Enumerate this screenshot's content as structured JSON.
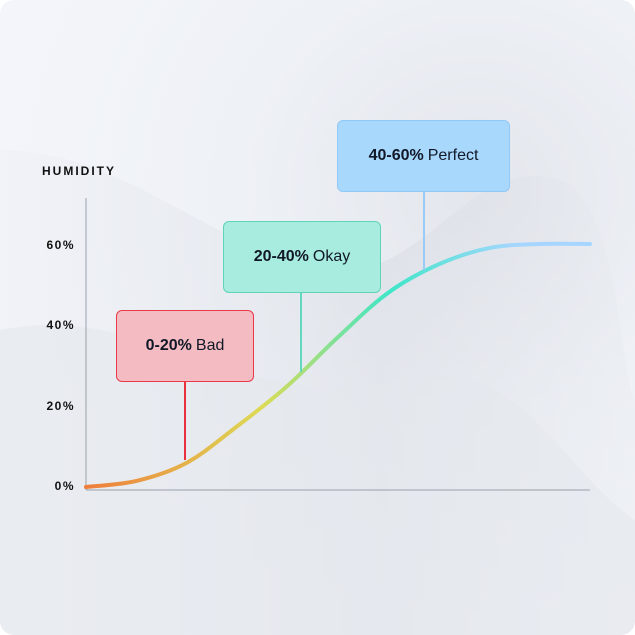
{
  "chart_data": {
    "type": "line",
    "ylabel": "HUMIDITY",
    "ylim": [
      0,
      60
    ],
    "yticks": [
      "0%",
      "20%",
      "40%",
      "60%"
    ],
    "x": [
      0,
      1,
      2,
      3,
      4,
      5,
      6,
      7,
      8,
      9,
      10
    ],
    "values": [
      0,
      1.5,
      6,
      15,
      25,
      37,
      48,
      55,
      59,
      60,
      60
    ],
    "grid": false,
    "line_gradient": [
      "#ef7d3c",
      "#dcdb55",
      "#3ee6c8",
      "#a6d6ff"
    ],
    "annotations": [
      {
        "range": "0-20%",
        "label": "Bad",
        "fill": "#f4bcc2",
        "border": "#e83a48",
        "line": "#e8303f"
      },
      {
        "range": "20-40%",
        "label": "Okay",
        "fill": "#a8ecdf",
        "border": "#5fd4b8",
        "line": "#62d8bf"
      },
      {
        "range": "40-60%",
        "label": "Perfect",
        "fill": "#a9d8fd",
        "border": "#93c9f5",
        "line": "#98ccf5"
      }
    ]
  }
}
